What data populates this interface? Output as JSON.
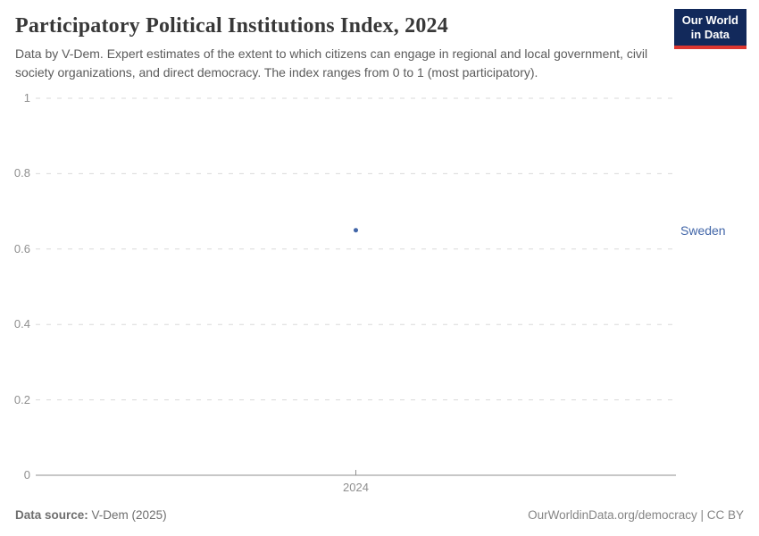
{
  "header": {
    "title": "Participatory Political Institutions Index, 2024",
    "subtitle": "Data by V-Dem. Expert estimates of the extent to which citizens can engage in regional and local government, civil society organizations, and direct democracy. The index ranges from 0 to 1 (most participatory).",
    "logo": {
      "line1": "Our World",
      "line2": "in Data"
    }
  },
  "chart_data": {
    "type": "scatter",
    "title": "Participatory Political Institutions Index, 2024",
    "categories": [
      2024
    ],
    "xticks": [
      "2024"
    ],
    "yticks": [
      0,
      0.2,
      0.4,
      0.6,
      0.8,
      1
    ],
    "ylim": [
      0,
      1
    ],
    "xlabel": "",
    "ylabel": "",
    "grid": "horizontal-dashed",
    "legend_position": "entity-label-right-of-plot",
    "series": [
      {
        "name": "Sweden",
        "x": [
          2024
        ],
        "values": [
          0.65
        ],
        "color": "#4266a8"
      }
    ]
  },
  "footer": {
    "source_label": "Data source:",
    "source_value": "V-Dem (2025)",
    "url": "OurWorldinData.org/democracy",
    "separator": " | ",
    "license": "CC BY"
  },
  "colors": {
    "accent_blue": "#4266a8",
    "logo_navy": "#12295b",
    "logo_red": "#dc3630",
    "grid": "#dadada",
    "axis": "#8f8f8f",
    "tick_text": "#8f8f8f"
  }
}
